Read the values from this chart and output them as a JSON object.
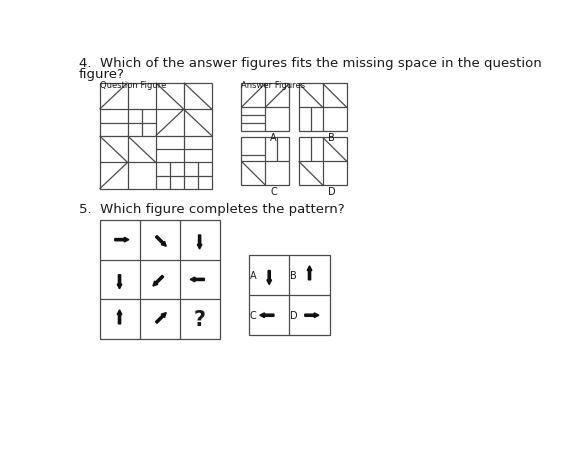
{
  "title4": "4.  Which of the answer figures fits the missing space in the question",
  "title4b": "figure?",
  "title5": "5.  Which figure completes the pattern?",
  "q4_label": "Question Figure",
  "ans_label": "Answer Figures",
  "bg_color": "#ffffff",
  "line_color": "#4a4a4a",
  "text_color": "#1a1a1a",
  "arrow_color": "#111111"
}
